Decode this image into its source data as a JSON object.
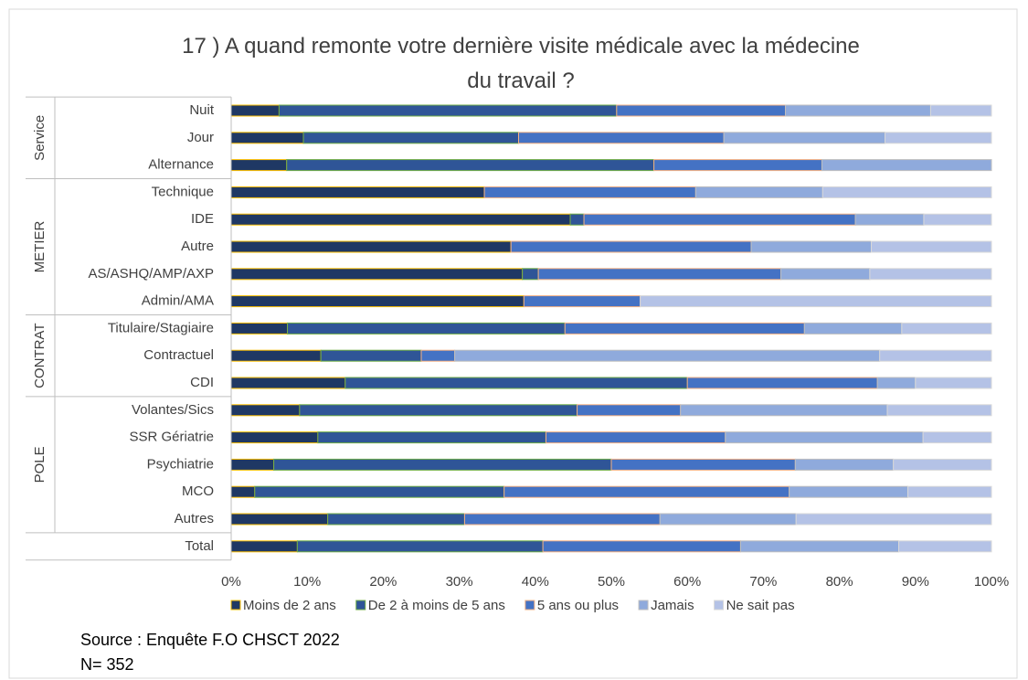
{
  "chart_data": {
    "type": "stacked_barh",
    "title": "17 ) A quand remonte votre dernière visite médicale  avec la médecine du travail ?",
    "groups": [
      {
        "label": "Service",
        "categories": [
          "Nuit",
          "Jour",
          "Alternance"
        ]
      },
      {
        "label": "METIER",
        "categories": [
          "Technique",
          "IDE",
          "Autre",
          "AS/ASHQ/AMP/AXP",
          "Admin/AMA"
        ]
      },
      {
        "label": "CONTRAT",
        "categories": [
          "Titulaire/Stagiaire",
          "Contractuel",
          "CDI"
        ]
      },
      {
        "label": "POLE",
        "categories": [
          "Volantes/Sics",
          "SSR Gériatrie",
          "Psychiatrie",
          "MCO",
          "Autres"
        ]
      },
      {
        "label": null,
        "categories": [
          "Total"
        ]
      }
    ],
    "series": [
      {
        "name": "Moins de 2 ans",
        "color": "#1f3864",
        "edgecolor": "#ffc000",
        "values": [
          6.3,
          9.5,
          7.3,
          33.3,
          44.6,
          36.8,
          38.3,
          38.5,
          7.4,
          11.8,
          15,
          9.0,
          11.4,
          5.6,
          3.1,
          12.7,
          8.7
        ]
      },
      {
        "name": "De 2 à moins de 5 ans",
        "color": "#2f5597",
        "edgecolor": "#70ad47",
        "values": [
          44.4,
          28.3,
          48.3,
          0,
          1.8,
          0,
          2.1,
          0,
          36.5,
          13.2,
          45,
          36.5,
          30.0,
          44.4,
          32.8,
          18.0,
          32.3
        ]
      },
      {
        "name": "5 ans ou plus",
        "color": "#4472c4",
        "edgecolor": "#f4b183",
        "values": [
          22.2,
          27.0,
          22.1,
          27.8,
          35.7,
          31.6,
          31.9,
          15.3,
          31.5,
          4.4,
          25,
          13.6,
          23.6,
          24.2,
          37.5,
          25.7,
          26.0
        ]
      },
      {
        "name": "Jamais",
        "color": "#8faadc",
        "edgecolor": "#bfbfbf",
        "values": [
          19.1,
          21.2,
          22.3,
          16.7,
          9.0,
          15.8,
          11.7,
          0,
          12.8,
          55.9,
          5,
          27.2,
          26.0,
          12.9,
          15.6,
          17.9,
          20.8
        ]
      },
      {
        "name": "Ne sait pas",
        "color": "#b4c2e6",
        "edgecolor": "#d9d9d9",
        "values": [
          8.0,
          14.0,
          0,
          22.2,
          8.9,
          15.8,
          16.0,
          46.2,
          11.8,
          14.7,
          10,
          13.7,
          9.0,
          12.9,
          11.0,
          25.7,
          12.2
        ]
      }
    ],
    "xlim": [
      0,
      100
    ],
    "xticks": [
      {
        "value": 0,
        "label": "0%"
      },
      {
        "value": 10,
        "label": "10%"
      },
      {
        "value": 20,
        "label": "20%"
      },
      {
        "value": 30,
        "label": "30%"
      },
      {
        "value": 40,
        "label": "40%"
      },
      {
        "value": 50,
        "label": "50%"
      },
      {
        "value": 60,
        "label": "60%"
      },
      {
        "value": 70,
        "label": "70%"
      },
      {
        "value": 80,
        "label": "80%"
      },
      {
        "value": 90,
        "label": "90%"
      },
      {
        "value": 100,
        "label": "100%"
      }
    ],
    "notes": [
      "Source : Enquête F.O CHSCT 2022",
      "N= 352"
    ]
  }
}
